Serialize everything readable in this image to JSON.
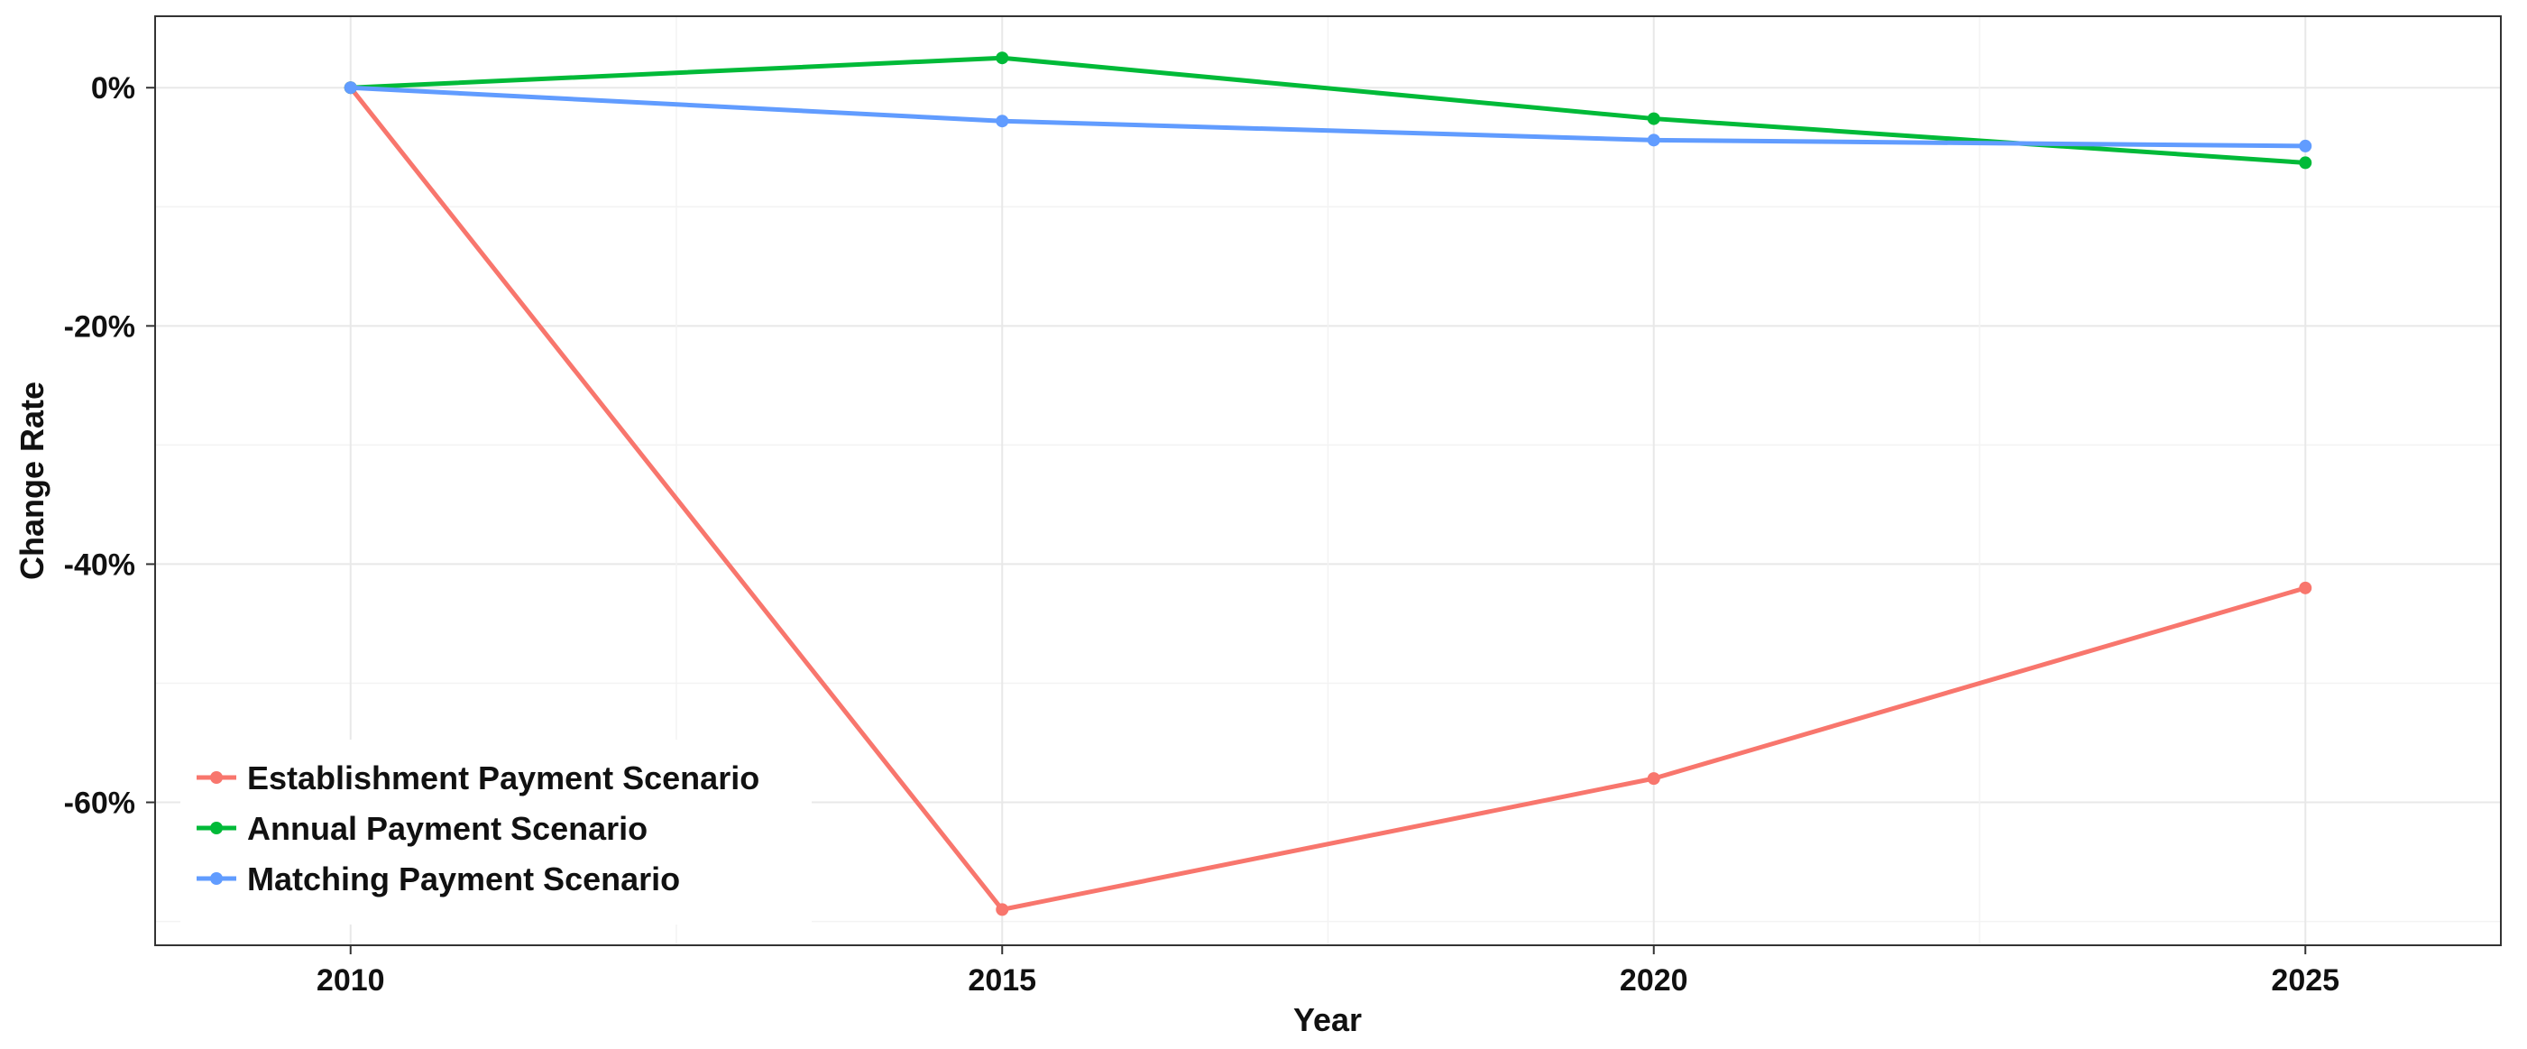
{
  "chart_data": {
    "type": "line",
    "title": "",
    "xlabel": "Year",
    "ylabel": "Change Rate",
    "x": [
      2010,
      2015,
      2020,
      2025
    ],
    "x_ticks": [
      "2010",
      "2015",
      "2020",
      "2025"
    ],
    "y_ticks": [
      {
        "value": 0,
        "label": "0%"
      },
      {
        "value": -20,
        "label": "-20%"
      },
      {
        "value": -40,
        "label": "-40%"
      },
      {
        "value": -60,
        "label": "-60%"
      }
    ],
    "xlim": [
      2008.5,
      2026.5
    ],
    "ylim": [
      -72,
      6
    ],
    "grid": true,
    "legend_position": "bottom-left",
    "series": [
      {
        "name": "Establishment Payment Scenario",
        "color": "#F8766D",
        "values": [
          0,
          -69,
          -58,
          -42
        ]
      },
      {
        "name": "Annual Payment Scenario",
        "color": "#00BA38",
        "values": [
          0,
          2.5,
          -2.6,
          -6.3
        ]
      },
      {
        "name": "Matching Payment Scenario",
        "color": "#619CFF",
        "values": [
          0,
          -2.8,
          -4.4,
          -4.9
        ]
      }
    ]
  }
}
